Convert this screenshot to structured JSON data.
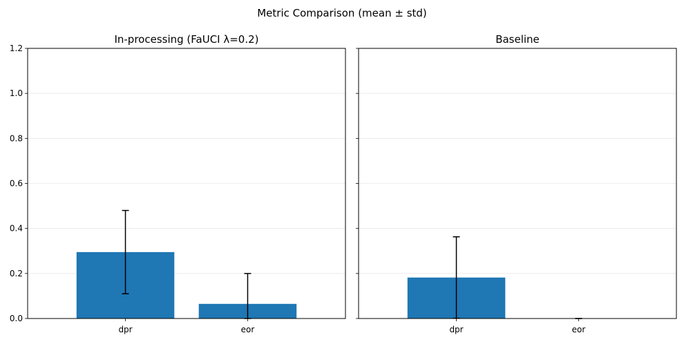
{
  "title": "Metric Comparison (mean ± std)",
  "chart_data": [
    {
      "type": "bar",
      "title": "In-processing (FaUCI λ=0.2)",
      "categories": [
        "dpr",
        "eor"
      ],
      "values": [
        0.295,
        0.065
      ],
      "errors": [
        0.185,
        0.135
      ],
      "ylim": [
        0,
        1.2
      ],
      "yticks": [
        "0.0",
        "0.2",
        "0.4",
        "0.6",
        "0.8",
        "1.0",
        "1.2"
      ],
      "grid": true,
      "color": "#1f77b4"
    },
    {
      "type": "bar",
      "title": "Baseline",
      "categories": [
        "dpr",
        "eor"
      ],
      "values": [
        0.182,
        0.0
      ],
      "errors": [
        0.181,
        0.0
      ],
      "ylim": [
        0,
        1.2
      ],
      "grid": true,
      "color": "#1f77b4"
    }
  ]
}
